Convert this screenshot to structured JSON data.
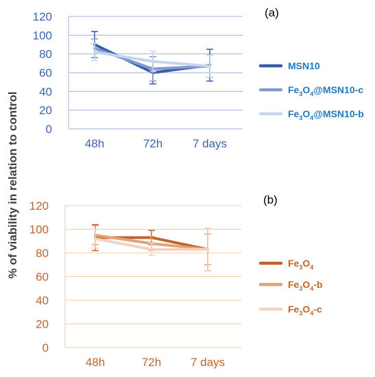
{
  "figure": {
    "ylabel": "% of viability in relation to control"
  },
  "chart_data": [
    {
      "type": "line",
      "panel_label": "(a)",
      "categories": [
        "48h",
        "72h",
        "7 days"
      ],
      "ylim": [
        0,
        120
      ],
      "yticks": [
        0,
        20,
        40,
        60,
        80,
        100,
        120
      ],
      "grid": true,
      "legend_position": "right",
      "colors": {
        "axis_text": "#3a62ad",
        "grid": "#a3b5d9",
        "legend_text": "#1f78c1"
      },
      "series": [
        {
          "name": "MSN10",
          "name_parts": [
            "MSN10"
          ],
          "color": "#3a5da8",
          "values": [
            90,
            60,
            68
          ],
          "errors": [
            14,
            12,
            17
          ]
        },
        {
          "name": "Fe3O4@MSN10-c",
          "name_parts": [
            "Fe",
            "3",
            "O",
            "4",
            "@MSN10-c"
          ],
          "color": "#7f9bd1",
          "values": [
            86,
            64,
            67
          ],
          "errors": [
            10,
            13,
            12
          ]
        },
        {
          "name": "Fe3O4@MSN10-b",
          "name_parts": [
            "Fe",
            "3",
            "O",
            "4",
            "@MSN10-b"
          ],
          "color": "#c8d4ec",
          "values": [
            82,
            72,
            67
          ],
          "errors": [
            9,
            11,
            12
          ]
        }
      ]
    },
    {
      "type": "line",
      "panel_label": "(b)",
      "categories": [
        "48h",
        "72h",
        "7 days"
      ],
      "ylim": [
        0,
        120
      ],
      "yticks": [
        0,
        20,
        40,
        60,
        80,
        100,
        120
      ],
      "grid": true,
      "legend_position": "right",
      "colors": {
        "axis_text": "#c0642b",
        "grid": "#f3c9a6",
        "legend_text": "#c0642b"
      },
      "series": [
        {
          "name": "Fe3O4",
          "name_parts": [
            "Fe",
            "3",
            "O",
            "4",
            ""
          ],
          "color": "#c0642b",
          "values": [
            93,
            93,
            83
          ],
          "errors": [
            11,
            6,
            18
          ]
        },
        {
          "name": "Fe3O4-b",
          "name_parts": [
            "Fe",
            "3",
            "O",
            "4",
            "-b"
          ],
          "color": "#e0a27a",
          "values": [
            95,
            88,
            83
          ],
          "errors": [
            8,
            6,
            13
          ]
        },
        {
          "name": "Fe3O4-c",
          "name_parts": [
            "Fe",
            "3",
            "O",
            "4",
            "-c"
          ],
          "color": "#f4d3bd",
          "values": [
            92,
            83,
            83
          ],
          "errors": [
            8,
            5,
            18
          ]
        }
      ]
    }
  ]
}
